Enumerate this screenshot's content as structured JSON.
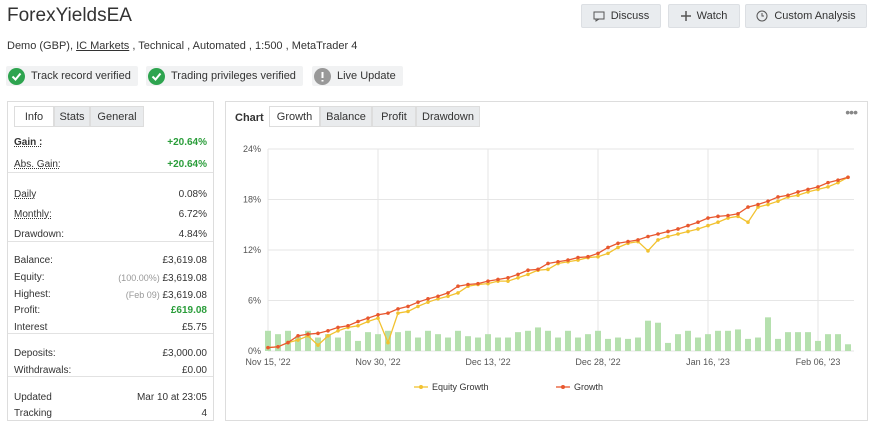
{
  "header": {
    "title": "ForexYieldsEA",
    "buttons": [
      "Discuss",
      "Watch",
      "Custom Analysis"
    ],
    "subtitle": {
      "before": "Demo (GBP), ",
      "link": "IC Markets",
      "after": " , Technical , Automated , 1:500 , MetaTrader 4"
    },
    "badges": [
      "Track record verified",
      "Trading privileges verified",
      "Live Update"
    ]
  },
  "stats_panel": {
    "tabs": [
      "Info",
      "Stats",
      "General"
    ],
    "groups": [
      [
        {
          "label": "Gain :",
          "value": "+20.64%"
        },
        {
          "label": "Abs. Gain:",
          "value": "+20.64%"
        }
      ],
      [
        {
          "label": "Daily",
          "value": "0.08%"
        },
        {
          "label": "Monthly:",
          "value": "6.72%"
        },
        {
          "label": "Drawdown:",
          "value": "4.84%"
        }
      ],
      [
        {
          "label": "Balance:",
          "value": "£3,619.08"
        },
        {
          "label": "Equity:",
          "note": "(100.00%)",
          "value": "£3,619.08"
        },
        {
          "label": "Highest:",
          "note": "(Feb 09)",
          "value": "£3,619.08"
        },
        {
          "label": "Profit:",
          "value": "£619.08"
        },
        {
          "label": "Interest",
          "value": "£5.75"
        }
      ],
      [
        {
          "label": "Deposits:",
          "value": "£3,000.00"
        },
        {
          "label": "Withdrawals:",
          "value": "£0.00"
        }
      ],
      [
        {
          "label": "Updated",
          "value": "Mar 10 at 23:05"
        },
        {
          "label": "Tracking",
          "value": "4"
        }
      ]
    ]
  },
  "chart_panel": {
    "label": "Chart",
    "tabs": [
      "Growth",
      "Balance",
      "Profit",
      "Drawdown"
    ]
  },
  "chart_data": {
    "type": "line",
    "categories": [
      "Nov 15, '22",
      null,
      null,
      null,
      null,
      null,
      null,
      null,
      null,
      null,
      null,
      "Nov 30, '22",
      null,
      null,
      null,
      null,
      null,
      null,
      null,
      null,
      null,
      null,
      "Dec 13, '22",
      null,
      null,
      null,
      null,
      null,
      null,
      null,
      null,
      null,
      null,
      "Dec 28, '22",
      null,
      null,
      null,
      null,
      null,
      null,
      null,
      null,
      null,
      null,
      "Jan 16, '23",
      null,
      null,
      null,
      null,
      null,
      null,
      null,
      null,
      null,
      null,
      "Feb 06, '23",
      null,
      null,
      null
    ],
    "ylim": [
      0,
      24
    ],
    "yticks": [
      {
        "value": 0,
        "label": "0%"
      },
      {
        "value": 6,
        "label": "6%"
      },
      {
        "value": 12,
        "label": "12%"
      },
      {
        "value": 18,
        "label": "18%"
      },
      {
        "value": 24,
        "label": "24%"
      }
    ],
    "y2lim": [
      0,
      3
    ],
    "grid": true,
    "bars": {
      "color": "#b5e0ae",
      "axis": "y2",
      "values": [
        0.3,
        0.25,
        0.3,
        0.22,
        0.3,
        0.2,
        0.25,
        0.2,
        0.3,
        0.15,
        0.28,
        0.25,
        0.3,
        0.28,
        0.3,
        0.2,
        0.3,
        0.25,
        0.2,
        0.3,
        0.22,
        0.2,
        0.25,
        0.2,
        0.2,
        0.28,
        0.3,
        0.35,
        0.3,
        0.2,
        0.3,
        0.2,
        0.25,
        0.3,
        0.18,
        0.2,
        0.18,
        0.2,
        0.45,
        0.42,
        0.12,
        0.25,
        0.3,
        0.2,
        0.25,
        0.3,
        0.3,
        0.32,
        0.18,
        0.2,
        0.5,
        0.18,
        0.28,
        0.28,
        0.28,
        0.15,
        0.25,
        0.25,
        0.1
      ]
    },
    "series": [
      {
        "name": "Equity Growth",
        "color": "#f2c230",
        "values": [
          0.4,
          0.5,
          1.0,
          1.3,
          1.8,
          0.7,
          1.8,
          2.4,
          2.8,
          3.0,
          3.5,
          3.9,
          1.0,
          4.5,
          4.7,
          5.3,
          5.8,
          6.2,
          6.5,
          6.9,
          7.7,
          7.9,
          8.0,
          8.3,
          8.3,
          8.7,
          9.1,
          9.6,
          9.7,
          10.4,
          10.6,
          10.8,
          11.1,
          11.2,
          11.6,
          12.3,
          12.8,
          13.0,
          11.9,
          13.2,
          13.6,
          13.9,
          14.2,
          14.5,
          14.9,
          15.3,
          15.8,
          16.0,
          15.3,
          17.1,
          17.4,
          17.8,
          18.3,
          18.5,
          18.9,
          19.2,
          19.5,
          20.0,
          20.64
        ]
      },
      {
        "name": "Growth",
        "color": "#e8582f",
        "values": [
          0.4,
          0.5,
          1.0,
          1.8,
          2.0,
          2.1,
          2.4,
          2.8,
          3.0,
          3.5,
          3.9,
          4.3,
          4.5,
          5.0,
          5.3,
          5.8,
          6.2,
          6.5,
          6.9,
          7.7,
          7.9,
          8.0,
          8.3,
          8.5,
          8.7,
          9.1,
          9.6,
          9.7,
          10.4,
          10.6,
          10.8,
          11.1,
          11.2,
          11.6,
          12.3,
          12.8,
          13.0,
          13.2,
          13.6,
          13.9,
          14.2,
          14.5,
          14.9,
          15.3,
          15.8,
          16.0,
          16.1,
          16.3,
          17.1,
          17.4,
          17.8,
          18.3,
          18.5,
          18.9,
          19.2,
          19.5,
          20.0,
          20.3,
          20.64
        ]
      }
    ]
  }
}
